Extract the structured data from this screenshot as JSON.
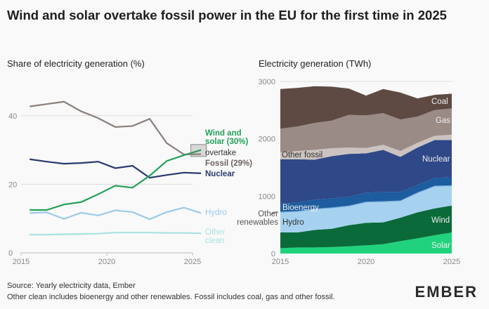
{
  "title": "Wind and solar overtake fossil power in the EU for the first time in 2025",
  "footer": {
    "source": "Source: Yearly electricity data, Ember",
    "note": "Other clean includes bioenergy and other renewables. Fossil includes coal, gas and other fossil."
  },
  "logo": "EMBER",
  "chart_data": [
    {
      "type": "line",
      "title": "Share of electricity generation (%)",
      "x": [
        2015,
        2016,
        2017,
        2018,
        2019,
        2020,
        2021,
        2022,
        2023,
        2024,
        2025
      ],
      "xticks": [
        "2015",
        "2020",
        "2025"
      ],
      "yticks": [
        "0",
        "20",
        "40"
      ],
      "ylim": [
        0,
        46
      ],
      "grid": true,
      "series": [
        {
          "name": "Fossil (29%)",
          "color": "#8a7e7a",
          "values": [
            42.7,
            43.4,
            44.1,
            41.3,
            39.3,
            36.7,
            37.0,
            39.1,
            32.0,
            28.7,
            28.8
          ]
        },
        {
          "name": "Wind and solar (30%)",
          "color": "#22a05a",
          "values": [
            12.5,
            12.5,
            14.1,
            14.8,
            17.1,
            19.6,
            19.0,
            22.5,
            26.8,
            28.5,
            30.0
          ]
        },
        {
          "name": "Nuclear",
          "color": "#2b3a6e",
          "values": [
            27.3,
            26.6,
            26.0,
            26.2,
            26.6,
            24.7,
            25.4,
            21.9,
            22.7,
            23.4,
            23.2
          ]
        },
        {
          "name": "Hydro",
          "color": "#9ccaea",
          "values": [
            11.6,
            11.8,
            9.9,
            11.7,
            10.9,
            12.4,
            11.9,
            9.8,
            11.9,
            13.2,
            11.6
          ]
        },
        {
          "name": "Other clean",
          "color": "#a9e2e0",
          "values": [
            5.3,
            5.3,
            5.4,
            5.5,
            5.6,
            5.9,
            5.9,
            5.9,
            5.8,
            5.8,
            5.7
          ]
        }
      ],
      "annotation": "overtake"
    },
    {
      "type": "area",
      "stacked": true,
      "title": "Electricity generation (TWh)",
      "x": [
        2015,
        2016,
        2017,
        2018,
        2019,
        2020,
        2021,
        2022,
        2023,
        2024,
        2025
      ],
      "xticks": [
        "2015",
        "2020",
        "2025"
      ],
      "yticks": [
        "0",
        "1000",
        "2000",
        "3000"
      ],
      "ylim": [
        0,
        3000
      ],
      "grid": true,
      "series": [
        {
          "name": "Solar",
          "color": "#20d27c",
          "values": [
            94,
            106,
            106,
            114,
            126,
            143,
            163,
            216,
            265,
            318,
            367
          ]
        },
        {
          "name": "Wind",
          "color": "#0b6a3a",
          "values": [
            273,
            261,
            306,
            318,
            368,
            392,
            380,
            408,
            453,
            469,
            469
          ]
        },
        {
          "name": "Hydro",
          "color": "#a6d2f0",
          "values": [
            347,
            359,
            355,
            356,
            326,
            354,
            354,
            286,
            332,
            380,
            339
          ]
        },
        {
          "name": "Other renewables",
          "color": "#6fa8dc",
          "values": [
            15,
            15,
            15,
            15,
            15,
            15,
            15,
            15,
            15,
            15,
            15
          ]
        },
        {
          "name": "Bioenergy",
          "color": "#1d5c9e",
          "values": [
            140,
            148,
            160,
            156,
            156,
            157,
            161,
            148,
            130,
            136,
            140
          ]
        },
        {
          "name": "Nuclear",
          "color": "#2f4888",
          "values": [
            775,
            755,
            694,
            738,
            747,
            685,
            734,
            612,
            653,
            661,
            649
          ]
        },
        {
          "name": "Other fossil",
          "color": "#cbc3bf",
          "values": [
            123,
            143,
            171,
            139,
            110,
            94,
            90,
            102,
            82,
            73,
            94
          ]
        },
        {
          "name": "Gas",
          "color": "#9b8b87",
          "values": [
            408,
            428,
            470,
            481,
            571,
            567,
            551,
            551,
            457,
            449,
            457
          ]
        },
        {
          "name": "Coal",
          "color": "#5e4a43",
          "values": [
            693,
            674,
            640,
            592,
            457,
            347,
            420,
            469,
            318,
            265,
            257
          ]
        }
      ]
    }
  ]
}
